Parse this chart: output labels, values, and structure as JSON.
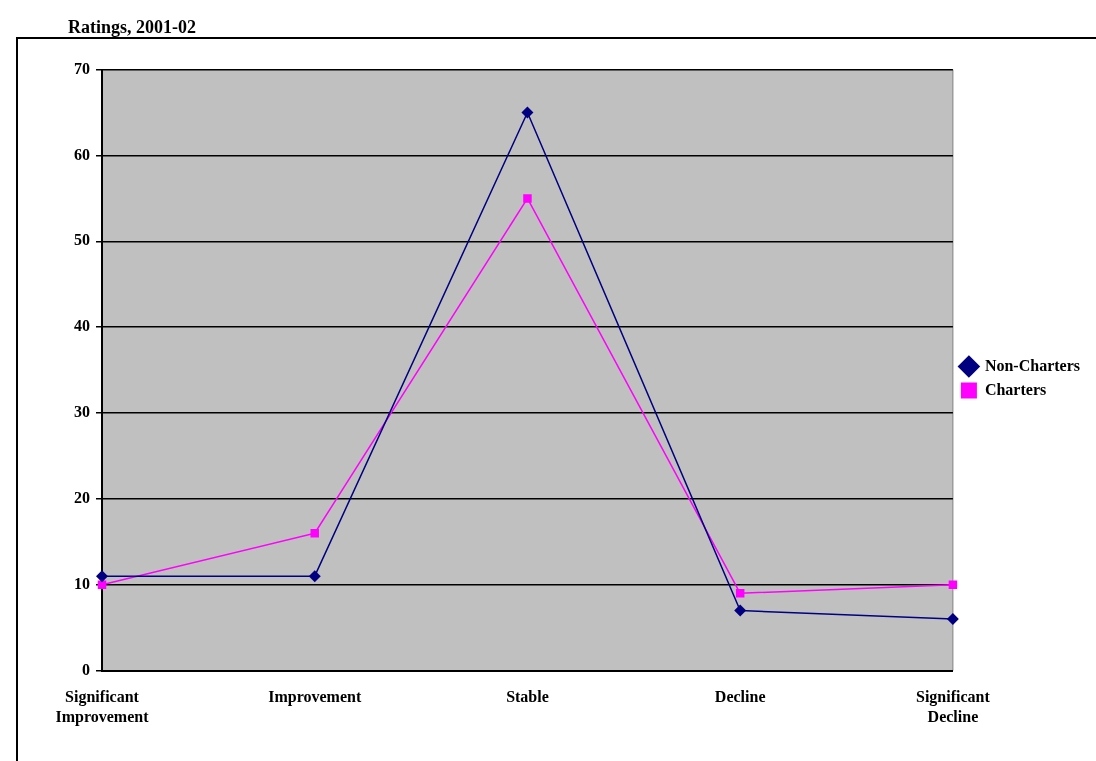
{
  "chart_data": {
    "type": "line",
    "title": "Ratings, 2001-02",
    "categories": [
      "Significant Improvement",
      "Improvement",
      "Stable",
      "Decline",
      "Significant Decline"
    ],
    "series": [
      {
        "name": "Non-Charters",
        "color": "#000080",
        "values": [
          11,
          11,
          65,
          7,
          6
        ],
        "marker": "diamond"
      },
      {
        "name": "Charters",
        "color": "#ff00ff",
        "values": [
          10,
          16,
          55,
          9,
          10
        ],
        "marker": "square"
      }
    ],
    "ylim": [
      0,
      70
    ],
    "yticks": [
      0,
      10,
      20,
      30,
      40,
      50,
      60,
      70
    ],
    "grid": "y",
    "legend": "right"
  }
}
